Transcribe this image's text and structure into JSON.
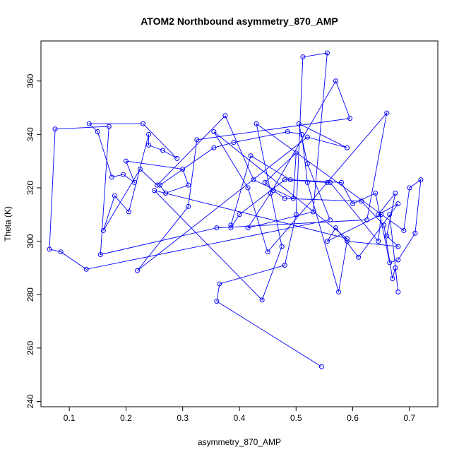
{
  "chart_data": {
    "type": "line",
    "title": "ATOM2 Northbound asymmetry_870_AMP",
    "xlabel": "asymmetry_870_AMP",
    "ylabel": "Theta (K)",
    "xlim": [
      0.05,
      0.75
    ],
    "ylim": [
      238,
      375
    ],
    "xticks": [
      0.1,
      0.2,
      0.3,
      0.4,
      0.5,
      0.6,
      0.7
    ],
    "yticks": [
      240,
      260,
      280,
      300,
      320,
      340,
      360
    ],
    "grid": false,
    "series_color": "#0000ff",
    "marker": "open-circle",
    "points": [
      [
        0.545,
        253
      ],
      [
        0.36,
        277.5
      ],
      [
        0.365,
        284
      ],
      [
        0.48,
        291
      ],
      [
        0.5,
        310
      ],
      [
        0.512,
        369
      ],
      [
        0.555,
        370.5
      ],
      [
        0.53,
        311
      ],
      [
        0.415,
        305
      ],
      [
        0.455,
        318
      ],
      [
        0.57,
        360
      ],
      [
        0.595,
        346
      ],
      [
        0.325,
        338
      ],
      [
        0.31,
        313
      ],
      [
        0.22,
        289
      ],
      [
        0.52,
        339
      ],
      [
        0.59,
        335
      ],
      [
        0.505,
        344
      ],
      [
        0.52,
        329
      ],
      [
        0.56,
        308
      ],
      [
        0.13,
        289.5
      ],
      [
        0.085,
        296
      ],
      [
        0.065,
        297
      ],
      [
        0.075,
        342
      ],
      [
        0.17,
        343
      ],
      [
        0.155,
        295
      ],
      [
        0.36,
        305
      ],
      [
        0.625,
        308
      ],
      [
        0.66,
        348
      ],
      [
        0.45,
        296
      ],
      [
        0.415,
        320
      ],
      [
        0.355,
        341
      ],
      [
        0.59,
        301
      ],
      [
        0.25,
        319
      ],
      [
        0.44,
        278
      ],
      [
        0.475,
        298
      ],
      [
        0.43,
        344
      ],
      [
        0.69,
        304
      ],
      [
        0.7,
        320
      ],
      [
        0.72,
        323
      ],
      [
        0.71,
        303
      ],
      [
        0.68,
        293
      ],
      [
        0.665,
        292
      ],
      [
        0.64,
        318
      ],
      [
        0.6,
        314
      ],
      [
        0.58,
        322
      ],
      [
        0.49,
        323
      ],
      [
        0.42,
        332
      ],
      [
        0.385,
        306
      ],
      [
        0.385,
        305
      ],
      [
        0.4,
        310
      ],
      [
        0.48,
        323
      ],
      [
        0.555,
        322
      ],
      [
        0.56,
        322
      ],
      [
        0.645,
        300
      ],
      [
        0.65,
        310
      ],
      [
        0.555,
        300
      ],
      [
        0.57,
        305
      ],
      [
        0.61,
        294
      ],
      [
        0.68,
        314
      ],
      [
        0.645,
        310
      ],
      [
        0.675,
        318
      ],
      [
        0.66,
        302
      ],
      [
        0.68,
        298
      ],
      [
        0.59,
        300
      ],
      [
        0.575,
        281
      ],
      [
        0.52,
        322
      ],
      [
        0.51,
        340
      ],
      [
        0.485,
        341
      ],
      [
        0.39,
        337
      ],
      [
        0.355,
        335
      ],
      [
        0.26,
        321
      ],
      [
        0.27,
        318
      ],
      [
        0.31,
        321
      ],
      [
        0.3,
        327
      ],
      [
        0.2,
        330
      ],
      [
        0.215,
        322
      ],
      [
        0.195,
        325
      ],
      [
        0.175,
        324
      ],
      [
        0.15,
        341
      ],
      [
        0.135,
        344
      ],
      [
        0.23,
        344
      ],
      [
        0.29,
        331
      ],
      [
        0.265,
        334
      ],
      [
        0.24,
        336
      ],
      [
        0.24,
        340
      ],
      [
        0.205,
        311
      ],
      [
        0.18,
        317
      ],
      [
        0.16,
        304
      ],
      [
        0.225,
        327
      ],
      [
        0.255,
        321
      ],
      [
        0.375,
        347
      ],
      [
        0.425,
        323
      ],
      [
        0.495,
        316
      ],
      [
        0.5,
        333
      ],
      [
        0.445,
        322
      ],
      [
        0.46,
        319
      ],
      [
        0.48,
        316
      ],
      [
        0.615,
        315
      ],
      [
        0.655,
        306
      ],
      [
        0.67,
        286
      ],
      [
        0.675,
        290
      ],
      [
        0.68,
        281
      ],
      [
        0.665,
        310
      ]
    ]
  }
}
